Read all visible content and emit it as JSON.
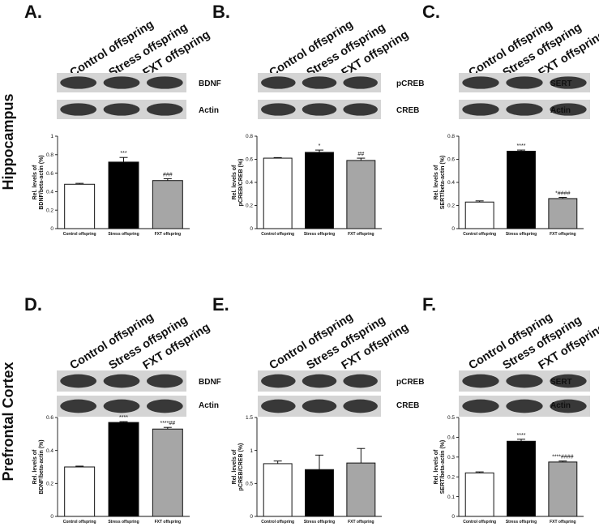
{
  "rows": [
    {
      "region": "Hippocampus"
    },
    {
      "region": "Prefrontal Cortex"
    }
  ],
  "lanes": [
    "Control offspring",
    "Stress offspring",
    "FXT offspring"
  ],
  "panels": [
    {
      "letter": "A.",
      "blots": [
        "BDNF",
        "Actin"
      ]
    },
    {
      "letter": "B.",
      "blots": [
        "pCREB",
        "CREB"
      ]
    },
    {
      "letter": "C.",
      "blots": [
        "SERT",
        "Actin"
      ]
    },
    {
      "letter": "D.",
      "blots": [
        "BDNF",
        "Actin"
      ]
    },
    {
      "letter": "E.",
      "blots": [
        "pCREB",
        "CREB"
      ]
    },
    {
      "letter": "F.",
      "blots": [
        "SERT",
        "Actin"
      ]
    }
  ],
  "colors": {
    "control": "#ffffff",
    "stress": "#000000",
    "fxt": "#a6a6a6"
  },
  "chart_data": [
    {
      "type": "bar",
      "panel": "A.",
      "categories": [
        "Control offspring",
        "Stress offspring",
        "FXT offspring"
      ],
      "values": [
        0.48,
        0.72,
        0.52
      ],
      "errors": [
        0.01,
        0.05,
        0.02
      ],
      "significance": [
        "",
        "***",
        "###"
      ],
      "ylabel": [
        "Rel. levels of",
        "BDNF/beta-actin (%)"
      ],
      "ylim": [
        0,
        1.0
      ],
      "yticks": [
        0,
        0.2,
        0.4,
        0.6,
        0.8,
        1.0
      ]
    },
    {
      "type": "bar",
      "panel": "B.",
      "categories": [
        "Control offspring",
        "Stress offspring",
        "FXT offspring"
      ],
      "values": [
        0.61,
        0.66,
        0.59
      ],
      "errors": [
        0.005,
        0.02,
        0.02
      ],
      "significance": [
        "",
        "*",
        "##"
      ],
      "ylabel": [
        "Rel. levels of",
        "pCREB/CREB (%)"
      ],
      "ylim": [
        0,
        0.8
      ],
      "yticks": [
        0,
        0.2,
        0.4,
        0.6,
        0.8
      ]
    },
    {
      "type": "bar",
      "panel": "C.",
      "categories": [
        "Control offspring",
        "Stress offspring",
        "FXT offspring"
      ],
      "values": [
        0.23,
        0.67,
        0.26
      ],
      "errors": [
        0.01,
        0.01,
        0.01
      ],
      "significance": [
        "",
        "****",
        "*####"
      ],
      "ylabel": [
        "Rel. levels of",
        "SERT/beta-actin (%)"
      ],
      "ylim": [
        0,
        0.8
      ],
      "yticks": [
        0,
        0.2,
        0.4,
        0.6,
        0.8
      ]
    },
    {
      "type": "bar",
      "panel": "D.",
      "categories": [
        "Control offspring",
        "Stress offspring",
        "FXT offspring"
      ],
      "values": [
        0.3,
        0.57,
        0.53
      ],
      "errors": [
        0.005,
        0.005,
        0.01
      ],
      "significance": [
        "",
        "****",
        "****##"
      ],
      "ylabel": [
        "Rel. levels of",
        "BDNF/beta-actin (%)"
      ],
      "ylim": [
        0,
        0.6
      ],
      "yticks": [
        0,
        0.2,
        0.4,
        0.6
      ]
    },
    {
      "type": "bar",
      "panel": "E.",
      "categories": [
        "Control offspring",
        "Stress offspring",
        "FXT offspring"
      ],
      "values": [
        0.8,
        0.71,
        0.81
      ],
      "errors": [
        0.04,
        0.22,
        0.22
      ],
      "significance": [
        "",
        "",
        ""
      ],
      "ylabel": [
        "Rel. levels of",
        "pCREB/CREB (%)"
      ],
      "ylim": [
        0,
        1.5
      ],
      "yticks": [
        0,
        0.5,
        1.0,
        1.5
      ]
    },
    {
      "type": "bar",
      "panel": "F.",
      "categories": [
        "Control offspring",
        "Stress offspring",
        "FXT offspring"
      ],
      "values": [
        0.22,
        0.38,
        0.275
      ],
      "errors": [
        0.005,
        0.01,
        0.005
      ],
      "significance": [
        "",
        "****",
        "****####"
      ],
      "ylabel": [
        "Rel. levels of",
        "SERT/beta-actin (%)"
      ],
      "ylim": [
        0,
        0.5
      ],
      "yticks": [
        0,
        0.1,
        0.2,
        0.3,
        0.4,
        0.5
      ]
    }
  ]
}
